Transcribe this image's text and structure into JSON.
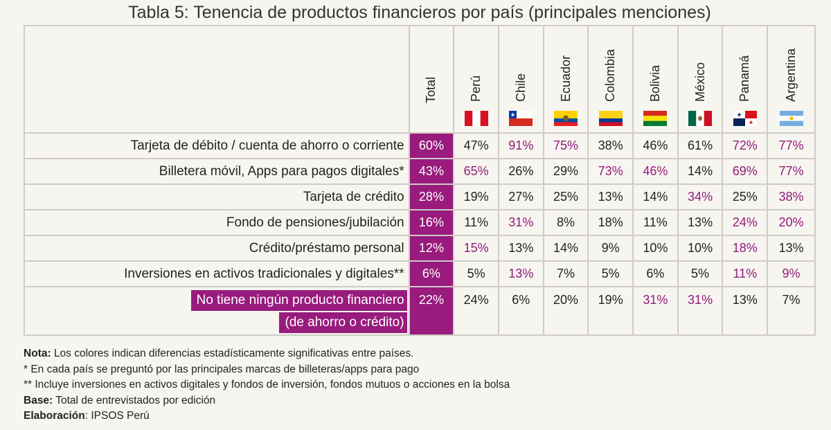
{
  "title": "Tabla 5: Tenencia de productos financieros por país (principales menciones)",
  "total_label": "Total",
  "countries": [
    {
      "name": "Perú",
      "flag": "peru-flag-icon"
    },
    {
      "name": "Chile",
      "flag": "chile-flag-icon"
    },
    {
      "name": "Ecuador",
      "flag": "ecuador-flag-icon"
    },
    {
      "name": "Colombia",
      "flag": "colombia-flag-icon"
    },
    {
      "name": "Bolivia",
      "flag": "bolivia-flag-icon"
    },
    {
      "name": "México",
      "flag": "mexico-flag-icon"
    },
    {
      "name": "Panamá",
      "flag": "panama-flag-icon"
    },
    {
      "name": "Argentina",
      "flag": "argentina-flag-icon"
    }
  ],
  "colors": {
    "highlight": "#981b7d",
    "significant_text": "#93187b",
    "border": "#cfcbc6",
    "background": "#f7f5f0"
  },
  "rows": [
    {
      "label": "Tarjeta de débito / cuenta de ahorro o corriente",
      "total": "60%",
      "values": [
        "47%",
        "91%",
        "75%",
        "38%",
        "46%",
        "61%",
        "72%",
        "77%"
      ],
      "significant": [
        false,
        true,
        true,
        false,
        false,
        false,
        true,
        true
      ]
    },
    {
      "label": "Billetera móvil, Apps para pagos digitales*",
      "total": "43%",
      "values": [
        "65%",
        "26%",
        "29%",
        "73%",
        "46%",
        "14%",
        "69%",
        "77%"
      ],
      "significant": [
        true,
        false,
        false,
        true,
        true,
        false,
        true,
        true
      ]
    },
    {
      "label": "Tarjeta de crédito",
      "total": "28%",
      "values": [
        "19%",
        "27%",
        "25%",
        "13%",
        "14%",
        "34%",
        "25%",
        "38%"
      ],
      "significant": [
        false,
        false,
        false,
        false,
        false,
        true,
        false,
        true
      ]
    },
    {
      "label": "Fondo de pensiones/jubilación",
      "total": "16%",
      "values": [
        "11%",
        "31%",
        "8%",
        "18%",
        "11%",
        "13%",
        "24%",
        "20%"
      ],
      "significant": [
        false,
        true,
        false,
        false,
        false,
        false,
        true,
        true
      ]
    },
    {
      "label": "Crédito/préstamo personal",
      "total": "12%",
      "values": [
        "15%",
        "13%",
        "14%",
        "9%",
        "10%",
        "10%",
        "18%",
        "13%"
      ],
      "significant": [
        true,
        false,
        false,
        false,
        false,
        false,
        true,
        false
      ]
    },
    {
      "label": "Inversiones en activos tradicionales y digitales**",
      "total": "6%",
      "values": [
        "5%",
        "13%",
        "7%",
        "5%",
        "6%",
        "5%",
        "11%",
        "9%"
      ],
      "significant": [
        false,
        true,
        false,
        false,
        false,
        false,
        true,
        true
      ]
    }
  ],
  "last_row": {
    "label_line1": "No tiene ningún producto financiero",
    "label_line2": "(de ahorro o crédito)",
    "total": "22%",
    "values": [
      "24%",
      "6%",
      "20%",
      "19%",
      "31%",
      "31%",
      "13%",
      "7%"
    ],
    "significant": [
      false,
      false,
      false,
      false,
      true,
      true,
      false,
      false
    ]
  },
  "notes": {
    "nota_label": "Nota:",
    "nota_text": " Los colores indican diferencias estadísticamente significativas entre países.",
    "note1": "* En cada país se preguntó por las principales marcas de billeteras/apps para pago",
    "note2": "** Incluye inversiones en activos digitales y fondos de inversión, fondos mutuos o acciones en la bolsa",
    "base_label": "Base:",
    "base_text": " Total de entrevistados por edición",
    "elab_label": "Elaboración",
    "elab_text": ": IPSOS Perú"
  }
}
